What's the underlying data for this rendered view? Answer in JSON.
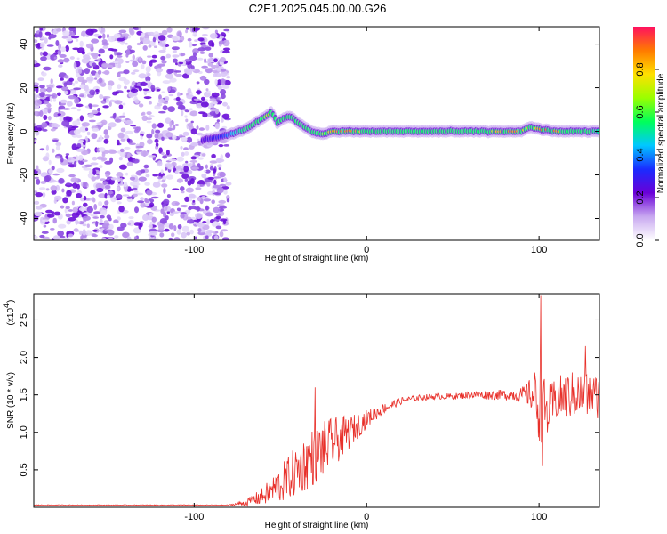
{
  "title": "C2E1.2025.045.00.00.G26",
  "chart_data": [
    {
      "type": "heatmap",
      "xlabel": "Height of straight line (km)",
      "ylabel": "Frequency (Hz)",
      "xlim": [
        -193,
        135
      ],
      "ylim": [
        -50,
        48
      ],
      "xticks": [
        -100,
        0,
        100
      ],
      "yticks": [
        -40,
        -20,
        0,
        20,
        40
      ],
      "colorbar": {
        "label": "Normalized spectral amplitude",
        "range": [
          0,
          1
        ],
        "ticks": [
          "0.0",
          "0.2",
          "0.4",
          "0.6",
          "0.8"
        ],
        "ticks_values": [
          0.0,
          0.2,
          0.4,
          0.6,
          0.8
        ],
        "colormap": [
          "#ffffff",
          "#c8a8f0",
          "#6a00d8",
          "#1a2cff",
          "#00c8ff",
          "#00ff5a",
          "#9bff00",
          "#ffe000",
          "#ff7a00",
          "#ff1060"
        ]
      },
      "noise_region": {
        "x_range": [
          -193,
          -80
        ],
        "y_range": [
          -50,
          48
        ]
      },
      "ridge": {
        "x": [
          -95,
          -88,
          -82,
          -78,
          -74,
          -70,
          -66,
          -62,
          -58,
          -55,
          -52,
          -48,
          -44,
          -40,
          -36,
          -32,
          -28,
          -24,
          -20,
          -15,
          -10,
          -5,
          0,
          10,
          20,
          30,
          40,
          50,
          60,
          70,
          80,
          90,
          95,
          100,
          110,
          120,
          130,
          135
        ],
        "freq": [
          -4,
          -3,
          -2,
          -1,
          0,
          1,
          3,
          5,
          7,
          9,
          4,
          6,
          7,
          4,
          2,
          0,
          -1,
          -1,
          0,
          0,
          0,
          0,
          0,
          0,
          0,
          0,
          0,
          0,
          0,
          0,
          0,
          0,
          2,
          1,
          0,
          0,
          0,
          0
        ],
        "amplitude": [
          0.25,
          0.3,
          0.35,
          0.45,
          0.5,
          0.55,
          0.6,
          0.6,
          0.7,
          0.75,
          0.6,
          0.6,
          0.65,
          0.6,
          0.55,
          0.55,
          0.6,
          0.7,
          0.85,
          0.9,
          0.9,
          0.85,
          0.55,
          0.6,
          0.55,
          0.55,
          0.55,
          0.6,
          0.6,
          0.65,
          0.9,
          0.85,
          0.6,
          0.9,
          0.9,
          0.6,
          0.55,
          0.5
        ]
      }
    },
    {
      "type": "line",
      "xlabel": "Height of straight line (km)",
      "ylabel": "SNR (10 * v/v)",
      "y_scale_label": "(x10",
      "y_scale_exponent": "4",
      "xlim": [
        -193,
        135
      ],
      "ylim": [
        0,
        2.85
      ],
      "xticks": [
        -100,
        0,
        100
      ],
      "yticks": [
        0.5,
        1.0,
        1.5,
        2.0,
        2.5
      ],
      "yticklabels": [
        "0.5",
        "1.0",
        "1.5",
        "2.0",
        "2.5"
      ],
      "line_color": "#e8302a",
      "envelope": {
        "x": [
          -193,
          -80,
          -70,
          -60,
          -50,
          -40,
          -30,
          -20,
          -10,
          0,
          10,
          20,
          30,
          40,
          50,
          60,
          70,
          80,
          90,
          95,
          100,
          105,
          110,
          120,
          135
        ],
        "mean": [
          0.03,
          0.03,
          0.06,
          0.15,
          0.3,
          0.5,
          0.7,
          0.85,
          1.0,
          1.18,
          1.32,
          1.42,
          1.46,
          1.48,
          1.48,
          1.5,
          1.5,
          1.5,
          1.5,
          1.52,
          1.4,
          1.25,
          1.45,
          1.5,
          1.48
        ],
        "noise": [
          0.005,
          0.005,
          0.04,
          0.12,
          0.25,
          0.35,
          0.4,
          0.35,
          0.22,
          0.12,
          0.07,
          0.05,
          0.04,
          0.04,
          0.04,
          0.05,
          0.06,
          0.07,
          0.1,
          0.2,
          0.55,
          0.35,
          0.3,
          0.32,
          0.3
        ]
      },
      "peaks": [
        {
          "x": 101,
          "y": 2.82
        },
        {
          "x": 102,
          "y": 0.55
        },
        {
          "x": -30,
          "y": 1.6
        },
        {
          "x": 127,
          "y": 2.15
        }
      ]
    }
  ]
}
